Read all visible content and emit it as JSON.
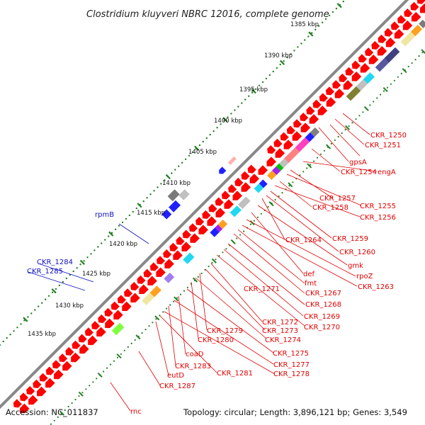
{
  "title": "Clostridium kluyveri NBRC 12016, complete genome",
  "footer": {
    "accession": "Accession: NC_011837",
    "summary": "Topology: circular; Length: 3,896,121 bp; Genes: 3,549"
  },
  "ruler": {
    "start_kbp": 1385,
    "step_kbp": 5,
    "ticks": [
      "1385 kbp",
      "1390 kbp",
      "1395 kbp",
      "1400 kbp",
      "1405 kbp",
      "1410 kbp",
      "1415 kbp",
      "1420 kbp",
      "1425 kbp",
      "1430 kbp",
      "1435 kbp"
    ]
  },
  "colors": {
    "forward_gene": "#ff0000",
    "reverse_gene": "#0000ff",
    "red_label": "#e00000",
    "blue_label": "#1010c0",
    "tick": "#208020",
    "backbone": "#888888"
  },
  "labels_outer": [
    "rpmB",
    "CKR_1284",
    "CKR_1285"
  ],
  "labels_inner": [
    "CKR_1250",
    "CKR_1251",
    "gpsA",
    "CKR_1254",
    "engA",
    "CKR_1257",
    "CKR_1255",
    "CKR_1258",
    "CKR_1256",
    "CKR_1264",
    "CKR_1259",
    "CKR_1260",
    "def",
    "gmk",
    "fmt",
    "rpoZ",
    "CKR_1263",
    "CKR_1271",
    "CKR_1267",
    "CKR_1268",
    "CKR_1269",
    "CKR_1272",
    "CKR_1270",
    "CKR_1273",
    "CKR_1279",
    "CKR_1274",
    "CKR_1280",
    "CKR_1275",
    "coaD",
    "CKR_1283",
    "CKR_1277",
    "CKR_1281",
    "CKR_1278",
    "eutD",
    "CKR_1287",
    "rnc"
  ]
}
